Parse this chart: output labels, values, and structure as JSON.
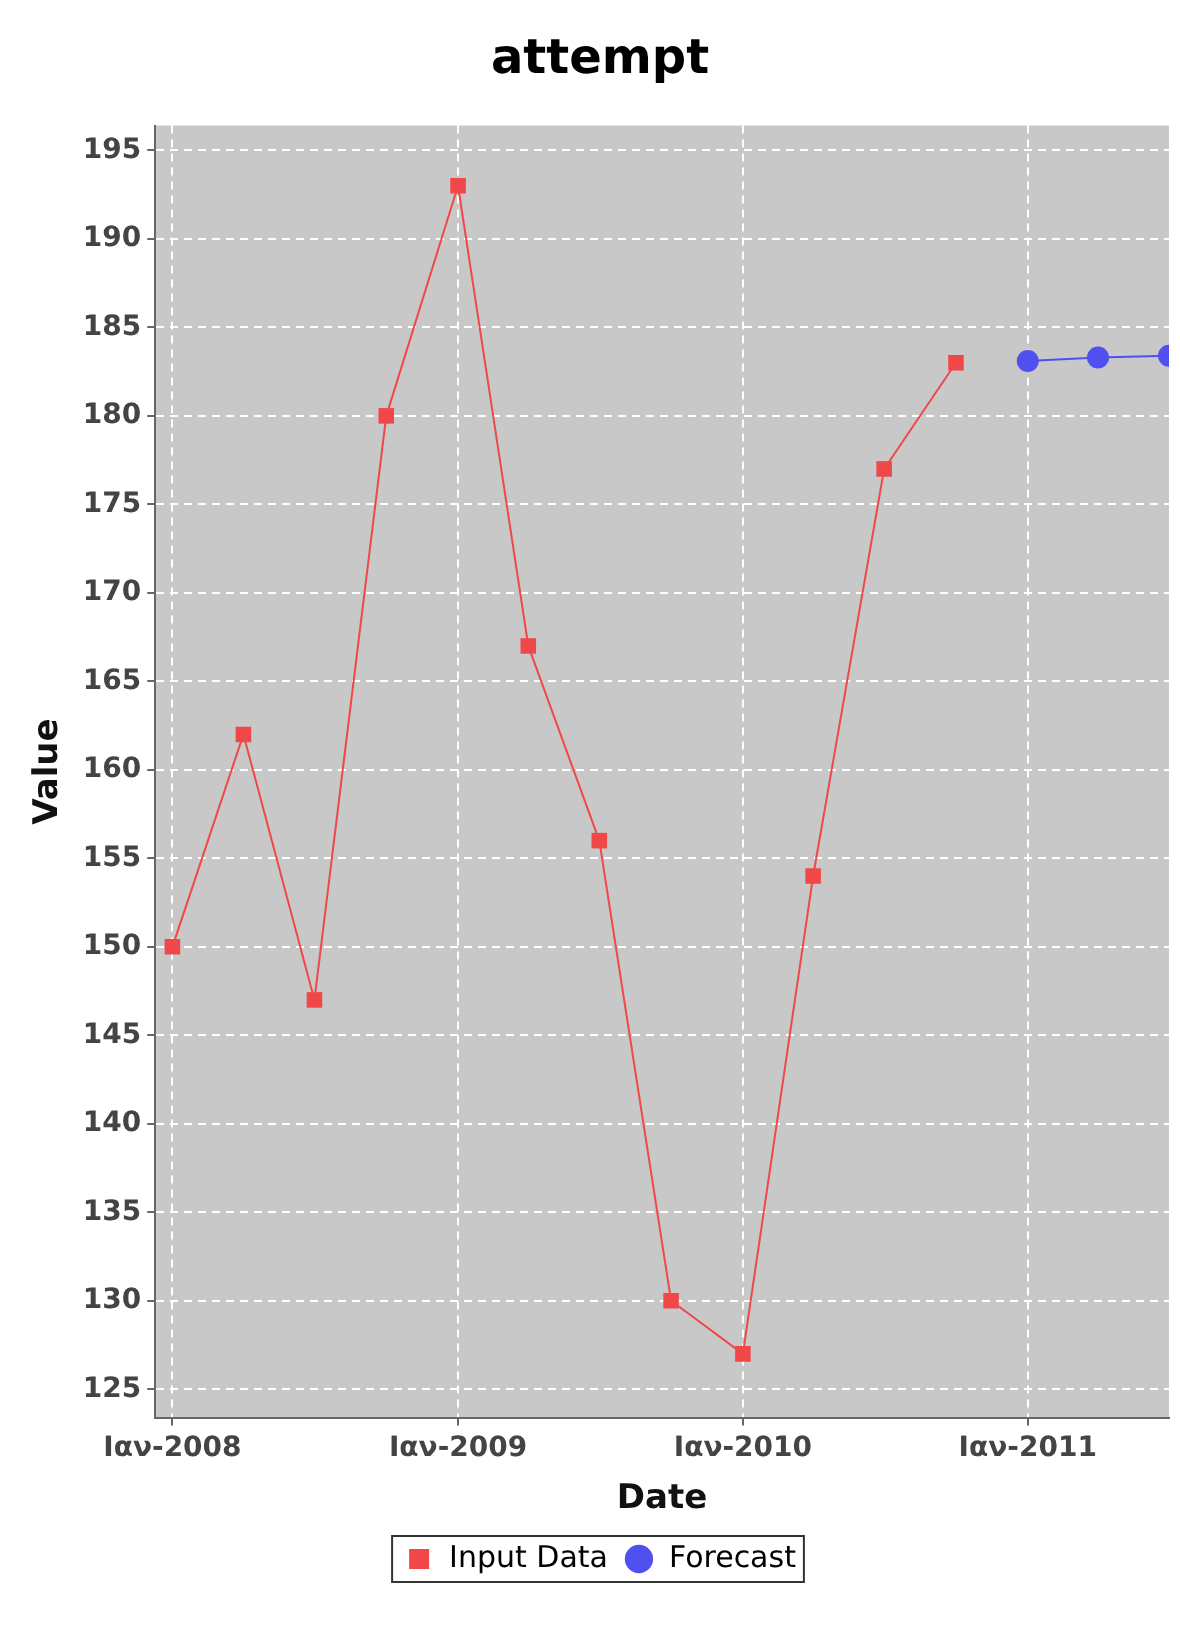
{
  "chart_data": {
    "type": "line",
    "title": "attempt",
    "xlabel": "Date",
    "ylabel": "Value",
    "xlim": [
      "2007-12-10",
      "2011-07-01"
    ],
    "xticks": [
      {
        "value": "2008-01",
        "label": "Ιαν-2008"
      },
      {
        "value": "2009-01",
        "label": "Ιαν-2009"
      },
      {
        "value": "2010-01",
        "label": "Ιαν-2010"
      },
      {
        "value": "2011-01",
        "label": "Ιαν-2011"
      }
    ],
    "ylim": [
      123.4,
      196.4
    ],
    "yticks": [
      125,
      130,
      135,
      140,
      145,
      150,
      155,
      160,
      165,
      170,
      175,
      180,
      185,
      190,
      195
    ],
    "grid": true,
    "legend": "bottom",
    "line_style": "solid",
    "series": [
      {
        "name": "Input Data",
        "color": "#f04848",
        "marker": "square",
        "x": [
          "2008-01",
          "2008-04",
          "2008-07",
          "2008-10",
          "2009-01",
          "2009-04",
          "2009-07",
          "2009-10",
          "2010-01",
          "2010-04",
          "2010-07",
          "2010-10"
        ],
        "values": [
          150,
          162,
          147,
          180,
          193,
          167,
          156,
          130,
          127,
          154,
          177,
          183
        ]
      },
      {
        "name": "Forecast",
        "color": "#5050f0",
        "marker": "circle",
        "x": [
          "2011-01",
          "2011-04",
          "2011-07"
        ],
        "values": [
          183.1,
          183.3,
          183.4
        ]
      }
    ]
  }
}
